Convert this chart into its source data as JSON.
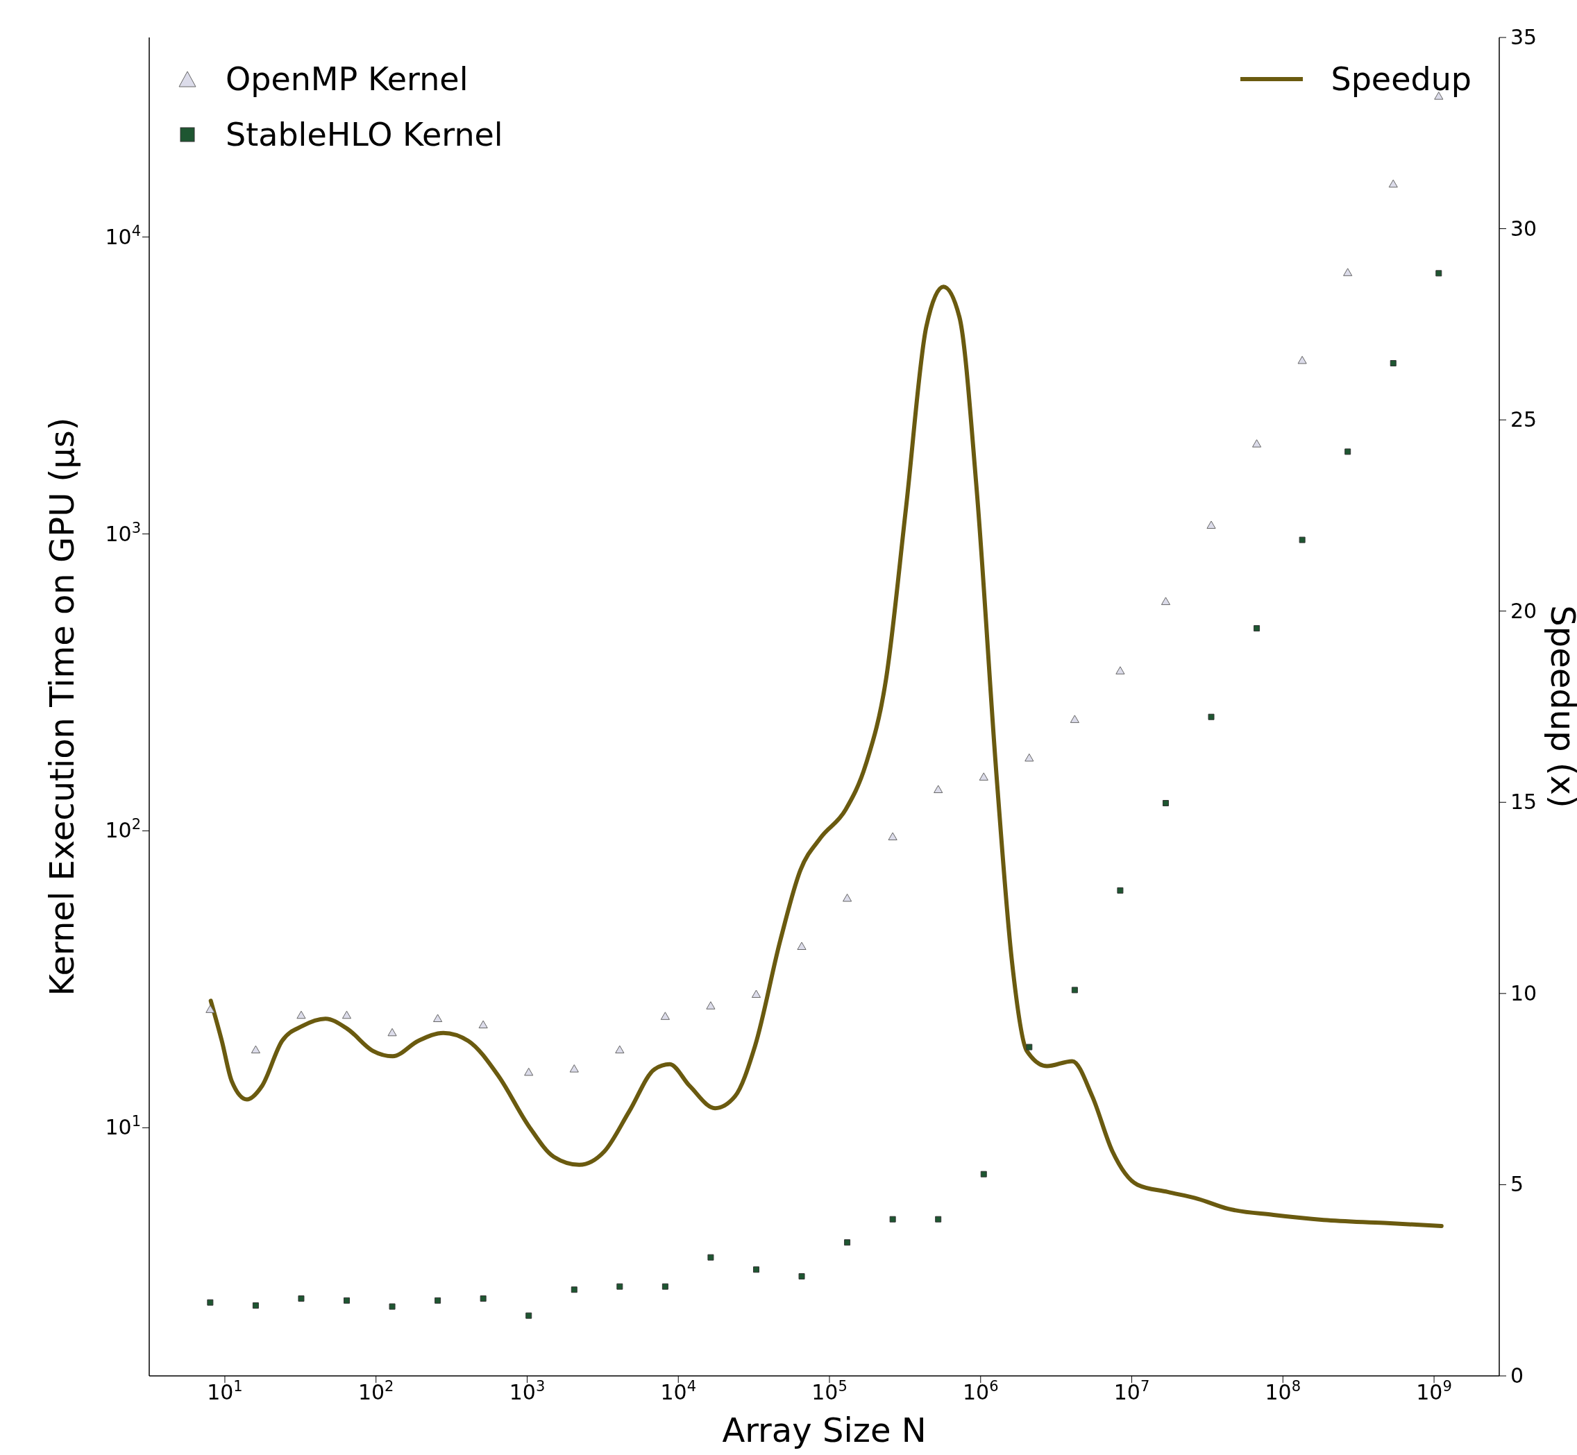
{
  "chart_data": {
    "type": "scatter",
    "xlabel": "Array Size N",
    "ylabel": "Kernel Execution Time on GPU (μs)",
    "y2label": "Speedup (x)",
    "x": [
      8,
      16,
      32,
      64,
      128,
      256,
      512,
      1024,
      2048,
      4096,
      8192,
      16384,
      32768,
      65536,
      131072,
      262144,
      524288,
      1048576,
      2097152,
      4194304,
      8388608,
      16777216,
      33554432,
      67108864,
      134217728,
      268435456,
      536870912,
      1073741824
    ],
    "series": [
      {
        "name": "OpenMP Kernel",
        "marker": "triangle",
        "color": "#dcdcea",
        "values": [
          24.9,
          18.2,
          23.8,
          23.8,
          20.8,
          23.2,
          22.1,
          15.3,
          15.7,
          18.2,
          23.6,
          25.6,
          28,
          40.6,
          59,
          95,
          137,
          151,
          175,
          236,
          344,
          589,
          1064,
          2000,
          3820,
          7550,
          15000,
          29650
        ]
      },
      {
        "name": "StableHLO Kernel",
        "marker": "square",
        "color": "#1e5631",
        "values": [
          2.58,
          2.52,
          2.66,
          2.62,
          2.5,
          2.62,
          2.66,
          2.33,
          2.85,
          2.92,
          2.92,
          3.66,
          3.33,
          3.16,
          4.11,
          4.92,
          4.92,
          6.98,
          18.7,
          29.1,
          63,
          124,
          242,
          481,
          955,
          1893,
          3758,
          7550
        ]
      },
      {
        "name": "Speedup",
        "type": "line",
        "axis": "y2",
        "color": "#6a5a0f",
        "line_style": "solid",
        "x": [
          8.07,
          9.55,
          11.1,
          14,
          17.6,
          23.9,
          32.6,
          46.3,
          64.9,
          95.3,
          129,
          190,
          279,
          408,
          647,
          1030,
          1500,
          2210,
          3240,
          4740,
          6970,
          8770,
          11900,
          17500,
          23700,
          32200,
          47300,
          64300,
          87300,
          128000,
          174000,
          237000,
          321000,
          437000,
          568000,
          724000,
          940000,
          1280000,
          1610000,
          2020000,
          2750000,
          4040000,
          5480000,
          7450000,
          10900000,
          17300000,
          27400000,
          43400000,
          86700000,
          186000000,
          468000000,
          1120000000
        ],
        "values": [
          9.81,
          8.76,
          7.71,
          7.23,
          7.58,
          8.76,
          9.15,
          9.34,
          9.07,
          8.5,
          8.36,
          8.76,
          8.97,
          8.76,
          7.84,
          6.52,
          5.73,
          5.52,
          5.87,
          6.92,
          8.02,
          8.15,
          7.58,
          7.0,
          7.31,
          8.63,
          11.39,
          13.23,
          14.07,
          14.81,
          15.99,
          18.23,
          22.7,
          27.43,
          28.48,
          27.69,
          23.22,
          15.6,
          10.86,
          8.5,
          8.1,
          8.23,
          7.31,
          5.87,
          5.0,
          4.81,
          4.63,
          4.37,
          4.21,
          4.08,
          4.0,
          3.92
        ]
      }
    ],
    "log": "xy",
    "xlim": [
      3.16,
      2700000000
    ],
    "ylim": [
      1.46,
      47000
    ],
    "y2lim": [
      0,
      35
    ],
    "xticks": [
      {
        "value": 10,
        "label": "10$^{1}$"
      },
      {
        "value": 100,
        "label": "10$^{2}$"
      },
      {
        "value": 1000,
        "label": "10$^{3}$"
      },
      {
        "value": 10000,
        "label": "10$^{4}$"
      },
      {
        "value": 100000,
        "label": "10$^{5}$"
      },
      {
        "value": 1000000,
        "label": "10$^{6}$"
      },
      {
        "value": 10000000,
        "label": "10$^{7}$"
      },
      {
        "value": 100000000,
        "label": "10$^{8}$"
      },
      {
        "value": 1000000000,
        "label": "10$^{9}$"
      }
    ],
    "yticks": [
      {
        "value": 10,
        "label": "10$^{1}$"
      },
      {
        "value": 100,
        "label": "10$^{2}$"
      },
      {
        "value": 1000,
        "label": "10$^{3}$"
      },
      {
        "value": 10000,
        "label": "10$^{4}$"
      }
    ],
    "y2ticks": [
      0,
      5,
      10,
      15,
      20,
      25,
      30,
      35
    ],
    "legend": "top"
  }
}
